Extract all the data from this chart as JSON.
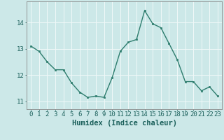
{
  "x": [
    0,
    1,
    2,
    3,
    4,
    5,
    6,
    7,
    8,
    9,
    10,
    11,
    12,
    13,
    14,
    15,
    16,
    17,
    18,
    19,
    20,
    21,
    22,
    23
  ],
  "y": [
    13.1,
    12.9,
    12.5,
    12.2,
    12.2,
    11.7,
    11.35,
    11.15,
    11.2,
    11.15,
    11.9,
    12.9,
    13.25,
    13.35,
    14.45,
    13.95,
    13.8,
    13.2,
    12.6,
    11.75,
    11.75,
    11.4,
    11.55,
    11.2
  ],
  "line_color": "#2e7d6e",
  "marker": "s",
  "marker_size": 2.0,
  "bg_color": "#cce8e8",
  "grid_color": "#f0f8f8",
  "xlabel": "Humidex (Indice chaleur)",
  "ylim": [
    10.7,
    14.8
  ],
  "xlim": [
    -0.5,
    23.5
  ],
  "xticks": [
    0,
    1,
    2,
    3,
    4,
    5,
    6,
    7,
    8,
    9,
    10,
    11,
    12,
    13,
    14,
    15,
    16,
    17,
    18,
    19,
    20,
    21,
    22,
    23
  ],
  "yticks": [
    11,
    12,
    13,
    14
  ],
  "tick_color": "#1a5f5a",
  "xlabel_fontsize": 7.5,
  "tick_fontsize": 6.5,
  "linewidth": 1.0
}
